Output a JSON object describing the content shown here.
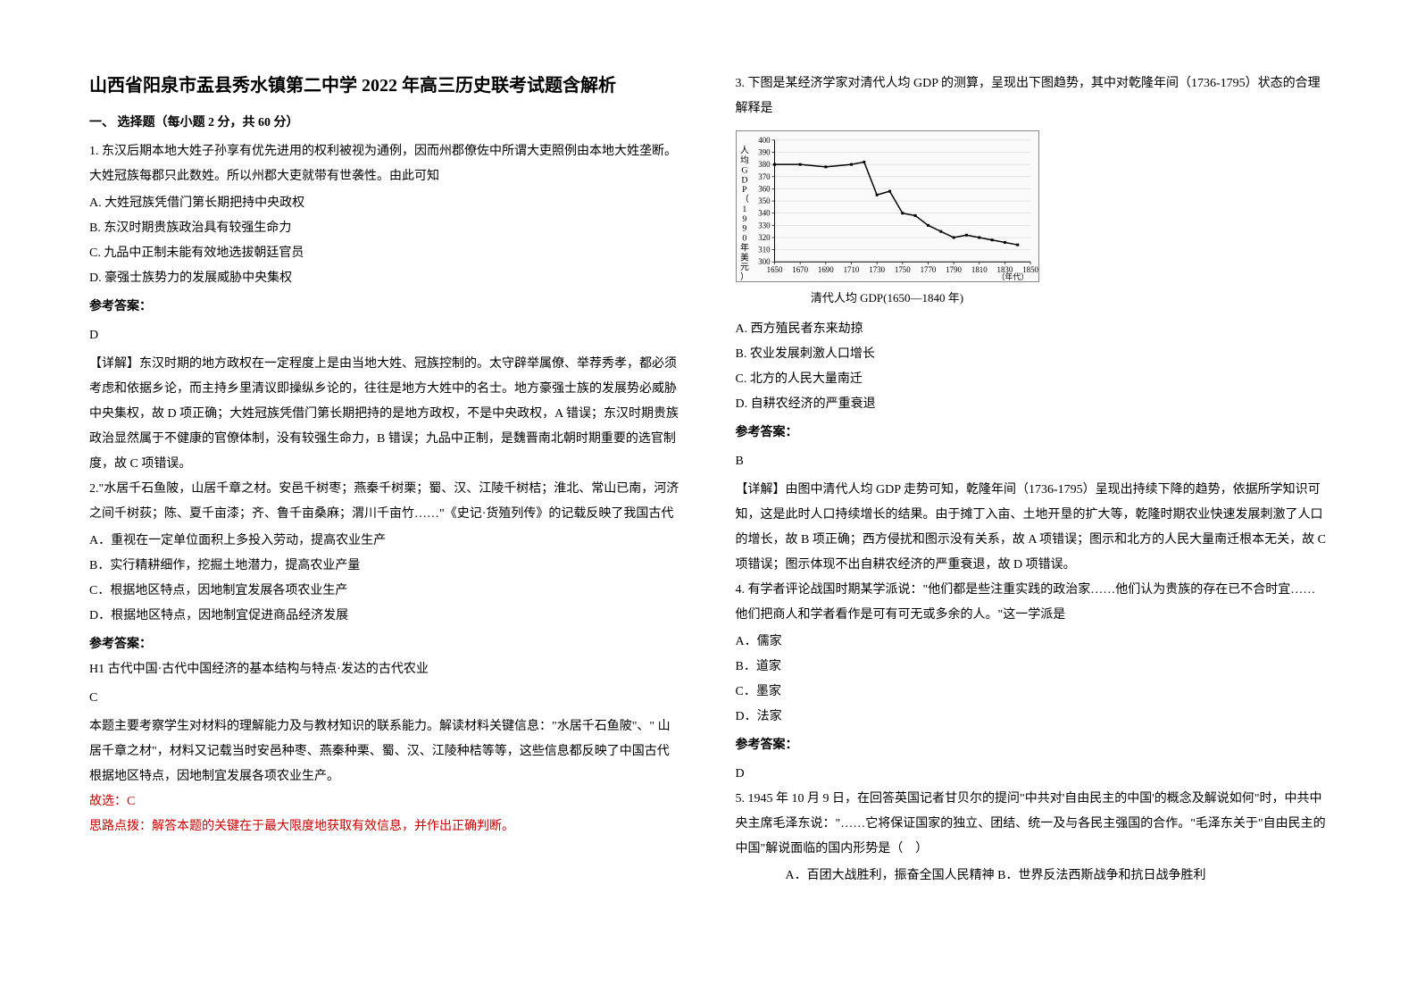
{
  "title": "山西省阳泉市盂县秀水镇第二中学 2022 年高三历史联考试题含解析",
  "section1": "一、 选择题（每小题 2 分，共 60 分）",
  "q1": {
    "stem": "1. 东汉后期本地大姓子孙享有优先进用的权利被视为通例，因而州郡僚佐中所谓大吏照例由本地大姓垄断。大姓冠族每郡只此数姓。所以州郡大吏就带有世袭性。由此可知",
    "a": "A. 大姓冠族凭借门第长期把持中央政权",
    "b": "B. 东汉时期贵族政治具有较强生命力",
    "c": "C. 九品中正制未能有效地选拔朝廷官员",
    "d": "D. 豪强士族势力的发展威胁中央集权",
    "answerLabel": "参考答案：",
    "answer": "D",
    "explanation": "【详解】东汉时期的地方政权在一定程度上是由当地大姓、冠族控制的。太守辟举属僚、举荐秀孝，都必须考虑和依据乡论，而主持乡里清议即操纵乡论的，往往是地方大姓中的名士。地方豪强士族的发展势必威胁中央集权，故 D 项正确；大姓冠族凭借门第长期把持的是地方政权，不是中央政权，A 错误；东汉时期贵族政治显然属于不健康的官僚体制，没有较强生命力，B 错误；九品中正制，是魏晋南北朝时期重要的选官制度，故 C 项错误。"
  },
  "q2": {
    "stem": "2.\"水居千石鱼陂，山居千章之材。安邑千树枣；燕秦千树栗；蜀、汉、江陵千树桔；淮北、常山已南，河济之间千树荻；陈、夏千亩漆；齐、鲁千亩桑麻；渭川千亩竹……\"《史记·货殖列传》的记载反映了我国古代",
    "a": "A．重视在一定单位面积上多投入劳动，提高农业生产",
    "b": "B．实行精耕细作，挖掘土地潜力，提高农业产量",
    "c": "C．根据地区特点，因地制宜发展各项农业生产",
    "d": "D．根据地区特点，因地制宜促进商品经济发展",
    "answerLabel": "参考答案：",
    "tag": "H1 古代中国·古代中国经济的基本结构与特点·发达的古代农业",
    "answer": "C",
    "explanation": "本题主要考察学生对材料的理解能力及与教材知识的联系能力。解读材料关键信息：\"水居千石鱼陂\"、\" 山居千章之材\"，材料又记载当时安邑种枣、燕秦种栗、蜀、汉、江陵种桔等等，这些信息都反映了中国古代根据地区特点，因地制宜发展各项农业生产。",
    "choice": "故选：C",
    "hint": "思路点拨：解答本题的关键在于最大限度地获取有效信息，并作出正确判断。"
  },
  "q3": {
    "stem": "3. 下图是某经济学家对清代人均 GDP 的测算，呈现出下图趋势，其中对乾隆年间（1736-1795）状态的合理解释是",
    "caption": "清代人均 GDP(1650—1840 年)",
    "a": "A. 西方殖民者东来劫掠",
    "b": "B. 农业发展刺激人口增长",
    "c": "C. 北方的人民大量南迁",
    "d": "D. 自耕农经济的严重衰退",
    "answerLabel": "参考答案：",
    "answer": "B",
    "explanation": "【详解】由图中清代人均 GDP 走势可知，乾隆年间（1736-1795）呈现出持续下降的趋势，依据所学知识可知，这是此时人口持续增长的结果。由于摊丁入亩、土地开垦的扩大等，乾隆时期农业快速发展刺激了人口的增长，故 B 项正确；西方侵扰和图示没有关系，故 A 项错误；图示和北方的人民大量南迁根本无关，故 C 项错误；图示体现不出自耕农经济的严重衰退，故 D 项错误。"
  },
  "q4": {
    "stem": "4. 有学者评论战国时期某学派说：\"他们都是些注重实践的政治家……他们认为贵族的存在已不合时宜……他们把商人和学者看作是可有可无或多余的人。\"这一学派是",
    "a": "A．儒家",
    "b": "B．道家",
    "c": "C．墨家",
    "d": "D．法家",
    "answerLabel": "参考答案：",
    "answer": "D"
  },
  "q5": {
    "stem": "5. 1945 年 10 月 9 日，在回答英国记者甘贝尔的提问\"中共对'自由民主的中国'的概念及解说如何\"时，中共中央主席毛泽东说：\"……它将保证国家的独立、团结、统一及与各民主强国的合作。\"毛泽东关于\"自由民主的中国\"解说面临的国内形势是（　）",
    "ab": "　　A．百团大战胜利，振奋全国人民精神 B．世界反法西斯战争和抗日战争胜利"
  },
  "chart": {
    "type": "line",
    "background_color": "#fafafa",
    "line_color": "#000000",
    "grid_color": "#cccccc",
    "x_range": [
      1650,
      1850
    ],
    "y_range": [
      300,
      400
    ],
    "x_ticks": [
      1650,
      1670,
      1690,
      1710,
      1730,
      1750,
      1770,
      1790,
      1810,
      1830,
      1850
    ],
    "y_ticks": [
      300,
      310,
      320,
      330,
      340,
      350,
      360,
      370,
      380,
      390,
      400
    ],
    "x_label": "（年代）",
    "y_label": "人均GDP（1990年美元）",
    "data_points": [
      {
        "x": 1650,
        "y": 380
      },
      {
        "x": 1670,
        "y": 380
      },
      {
        "x": 1690,
        "y": 378
      },
      {
        "x": 1710,
        "y": 380
      },
      {
        "x": 1720,
        "y": 382
      },
      {
        "x": 1730,
        "y": 355
      },
      {
        "x": 1740,
        "y": 358
      },
      {
        "x": 1750,
        "y": 340
      },
      {
        "x": 1760,
        "y": 338
      },
      {
        "x": 1770,
        "y": 330
      },
      {
        "x": 1780,
        "y": 325
      },
      {
        "x": 1790,
        "y": 320
      },
      {
        "x": 1800,
        "y": 322
      },
      {
        "x": 1810,
        "y": 320
      },
      {
        "x": 1820,
        "y": 318
      },
      {
        "x": 1830,
        "y": 316
      },
      {
        "x": 1840,
        "y": 314
      }
    ]
  }
}
